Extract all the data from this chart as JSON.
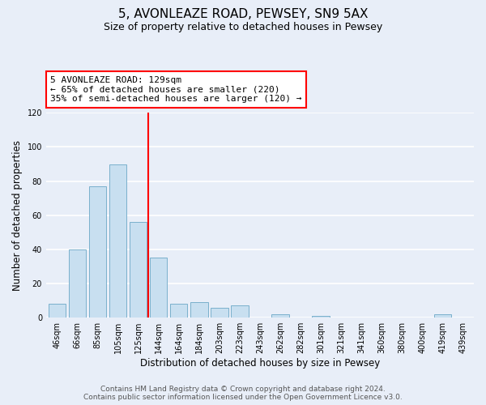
{
  "title": "5, AVONLEAZE ROAD, PEWSEY, SN9 5AX",
  "subtitle": "Size of property relative to detached houses in Pewsey",
  "xlabel": "Distribution of detached houses by size in Pewsey",
  "ylabel": "Number of detached properties",
  "bar_labels": [
    "46sqm",
    "66sqm",
    "85sqm",
    "105sqm",
    "125sqm",
    "144sqm",
    "164sqm",
    "184sqm",
    "203sqm",
    "223sqm",
    "243sqm",
    "262sqm",
    "282sqm",
    "301sqm",
    "321sqm",
    "341sqm",
    "360sqm",
    "380sqm",
    "400sqm",
    "419sqm",
    "439sqm"
  ],
  "bar_values": [
    8,
    40,
    77,
    90,
    56,
    35,
    8,
    9,
    6,
    7,
    0,
    2,
    0,
    1,
    0,
    0,
    0,
    0,
    0,
    2,
    0
  ],
  "bar_color": "#c8dff0",
  "bar_edge_color": "#7ab0cc",
  "highlight_line_color": "red",
  "annotation_title": "5 AVONLEAZE ROAD: 129sqm",
  "annotation_line1": "← 65% of detached houses are smaller (220)",
  "annotation_line2": "35% of semi-detached houses are larger (120) →",
  "annotation_box_color": "white",
  "annotation_box_edge_color": "red",
  "ylim": [
    0,
    120
  ],
  "yticks": [
    0,
    20,
    40,
    60,
    80,
    100,
    120
  ],
  "footer_line1": "Contains HM Land Registry data © Crown copyright and database right 2024.",
  "footer_line2": "Contains public sector information licensed under the Open Government Licence v3.0.",
  "background_color": "#e8eef8",
  "plot_bg_color": "#e8eef8",
  "grid_color": "white",
  "title_fontsize": 11,
  "subtitle_fontsize": 9,
  "axis_label_fontsize": 8.5,
  "tick_fontsize": 7,
  "footer_fontsize": 6.5,
  "annotation_fontsize": 8
}
